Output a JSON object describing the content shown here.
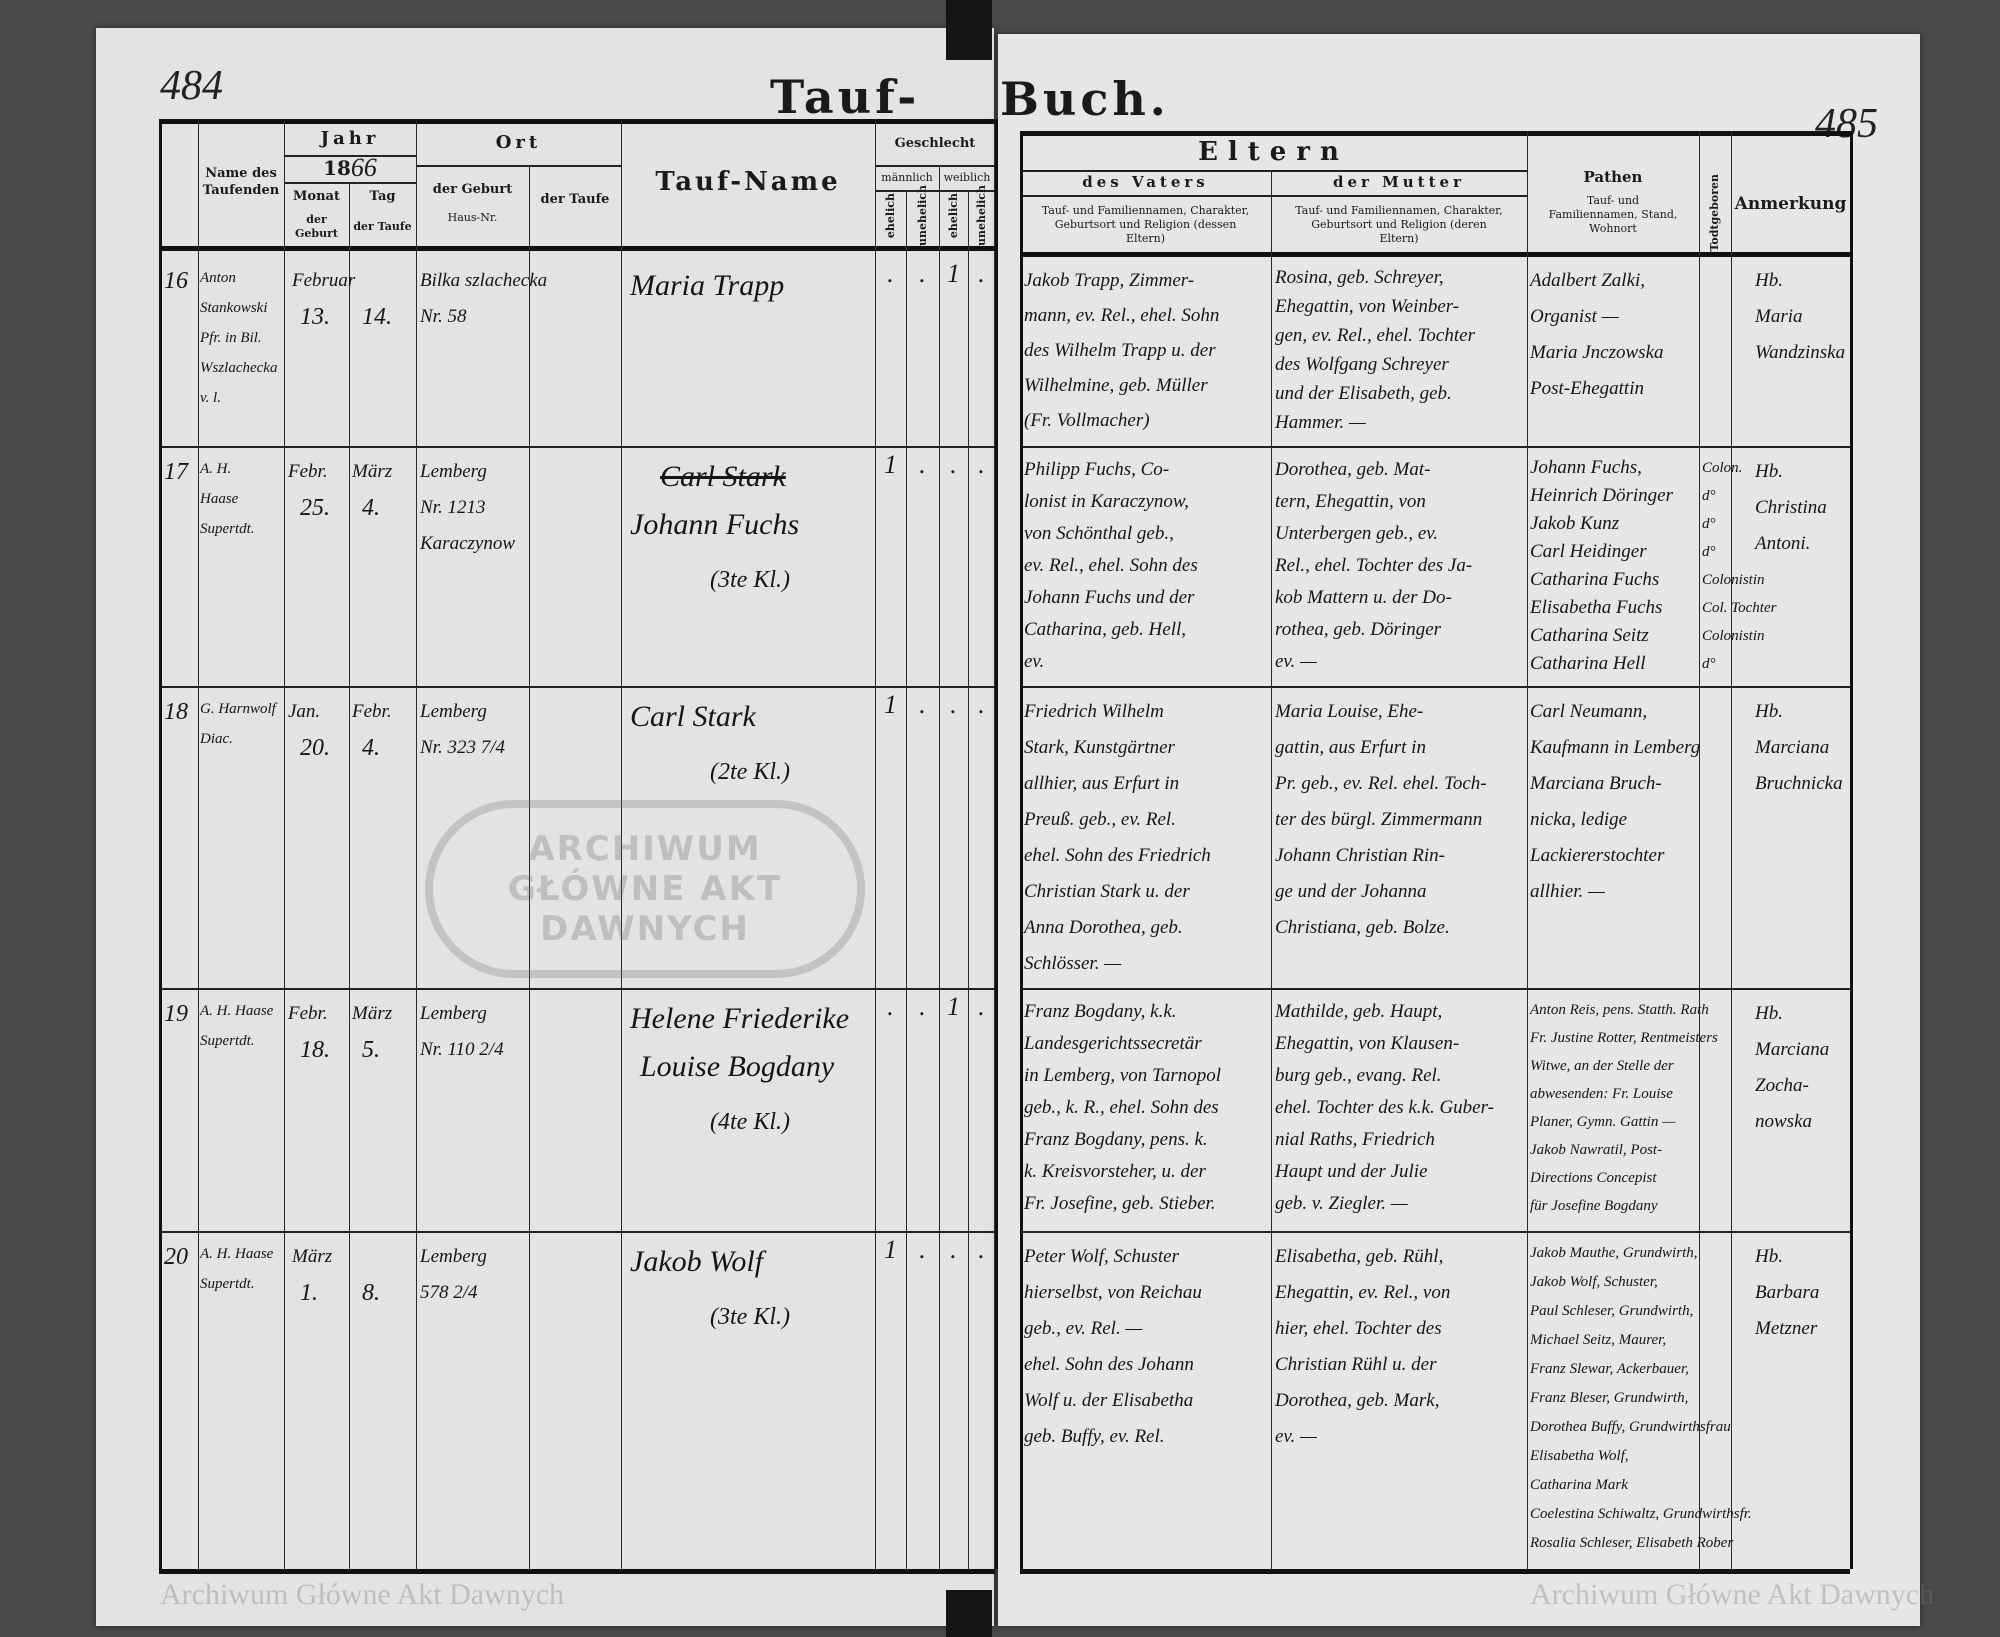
{
  "book_title": {
    "left": "Tauf-",
    "right": "Buch."
  },
  "page_numbers": {
    "left": "484",
    "right": "485"
  },
  "watermark": "Archiwum Główne Akt Dawnych",
  "stamp_text": "ARCHIWUM GŁÓWNE AKT DAWNYCH",
  "header": {
    "name_des_taufenden": "Name des Taufenden",
    "jahr": "Jahr",
    "year_printed": "18",
    "year_handwritten": "66",
    "monat": "Monat",
    "tag": "Tag",
    "der_geburt": "der Geburt",
    "der_taufe": "der Taufe",
    "ort": "Ort",
    "ort_geburt": "der Geburt",
    "haus_nr": "Haus-Nr.",
    "ort_taufe": "der Taufe",
    "tauf_name": "Tauf-Name",
    "geschlecht": "Geschlecht",
    "maennlich": "männlich",
    "weiblich": "weiblich",
    "ehelich": "ehelich",
    "unehelich": "unehelich",
    "eltern": "Eltern",
    "des_vaters": "des Vaters",
    "der_mutter": "der Mutter",
    "vater_desc": "Tauf- und Familiennamen, Charakter, Geburtsort und Religion (dessen Eltern)",
    "mutter_desc": "Tauf- und Familiennamen, Charakter, Geburtsort und Religion (deren Eltern)",
    "pathen": "Pathen",
    "pathen_desc": "Tauf- und Familiennamen, Stand, Wohnort",
    "todtgeboren": "Todtgeboren",
    "anmerkung": "Anmerkung"
  },
  "entries": [
    {
      "number": "16",
      "officiant": [
        "Anton",
        "Stankowski",
        "Pfr. in Bil.",
        "Wszlachecka",
        "v. l."
      ],
      "month": "Februar",
      "month_baptism": "",
      "birth_day": "13.",
      "baptism_day": "14.",
      "place": [
        "Bilka szlachecka",
        "Nr. 58"
      ],
      "name": [
        "Maria Trapp"
      ],
      "name_struck": "",
      "gender": [
        ".",
        ".",
        "1",
        "."
      ],
      "father": [
        "Jakob Trapp, Zimmer-",
        "mann, ev. Rel., ehel. Sohn",
        "des Wilhelm Trapp u. der",
        "Wilhelmine, geb. Müller",
        "(Fr. Vollmacher)"
      ],
      "mother": [
        "Rosina, geb. Schreyer,",
        "Ehegattin, von Weinber-",
        "gen, ev. Rel., ehel. Tochter",
        "des Wolfgang Schreyer",
        "und der Elisabeth, geb.",
        "Hammer. —"
      ],
      "godparents": [
        "Adalbert Zalki,",
        "Organist —",
        "Maria Jnczowska",
        "Post-Ehegattin"
      ],
      "status": [],
      "remark": [
        "Hb.",
        "Maria",
        "Wandzinska"
      ]
    },
    {
      "number": "17",
      "officiant": [
        "A. H.",
        "Haase",
        "Supertdt."
      ],
      "month": "Febr.",
      "month_baptism": "März",
      "birth_day": "25.",
      "baptism_day": "4.",
      "place": [
        "Lemberg",
        "Nr. 1213",
        "Karaczynow"
      ],
      "name": [
        "Johann Fuchs",
        "(3te Kl.)"
      ],
      "name_struck": "Carl Stark",
      "gender": [
        "1",
        ".",
        ".",
        "."
      ],
      "father": [
        "Philipp Fuchs, Co-",
        "lonist in Karaczynow,",
        "von Schönthal geb.,",
        "ev. Rel., ehel. Sohn des",
        "Johann Fuchs und der",
        "Catharina, geb. Hell,",
        "ev."
      ],
      "mother": [
        "Dorothea, geb. Mat-",
        "tern, Ehegattin, von",
        "Unterbergen geb., ev.",
        "Rel., ehel. Tochter des Ja-",
        "kob Mattern u. der Do-",
        "rothea, geb. Döringer",
        "ev. —"
      ],
      "godparents": [
        "Johann Fuchs,",
        "Heinrich Döringer",
        "Jakob Kunz",
        "Carl Heidinger",
        "Catharina Fuchs",
        "Elisabetha Fuchs",
        "Catharina Seitz",
        "Catharina Hell"
      ],
      "status": [
        "Colon.",
        "d°",
        "d°",
        "d°",
        "Colonistin",
        "Col. Tochter",
        "Colonistin",
        "d°"
      ],
      "remark": [
        "Hb.",
        "Christina",
        "Antoni."
      ]
    },
    {
      "number": "18",
      "officiant": [
        "G. Harnwolf",
        "Diac."
      ],
      "month": "Jan.",
      "month_baptism": "Febr.",
      "birth_day": "20.",
      "baptism_day": "4.",
      "place": [
        "Lemberg",
        "Nr. 323 7/4"
      ],
      "name": [
        "Carl Stark",
        "(2te Kl.)"
      ],
      "name_struck": "",
      "gender": [
        "1",
        ".",
        ".",
        "."
      ],
      "father": [
        "Friedrich Wilhelm",
        "Stark, Kunstgärtner",
        "allhier, aus Erfurt in",
        "Preuß. geb., ev. Rel.",
        "ehel. Sohn des Friedrich",
        "Christian Stark u. der",
        "Anna Dorothea, geb.",
        "Schlösser. —"
      ],
      "mother": [
        "Maria Louise, Ehe-",
        "gattin, aus Erfurt in",
        "Pr. geb., ev. Rel. ehel. Toch-",
        "ter des bürgl. Zimmermann",
        "Johann Christian Rin-",
        "ge und der Johanna",
        "Christiana, geb. Bolze."
      ],
      "godparents": [
        "Carl Neumann,",
        "Kaufmann in Lemberg",
        "Marciana Bruch-",
        "nicka, ledige",
        "Lackiererstochter",
        "allhier. —"
      ],
      "status": [],
      "remark": [
        "Hb.",
        "Marciana",
        "Bruchnicka"
      ]
    },
    {
      "number": "19",
      "officiant": [
        "A. H. Haase",
        "Supertdt."
      ],
      "month": "Febr.",
      "month_baptism": "März",
      "birth_day": "18.",
      "baptism_day": "5.",
      "place": [
        "Lemberg",
        "Nr. 110 2/4"
      ],
      "name": [
        "Helene Friederike",
        "Louise Bogdany",
        "(4te Kl.)"
      ],
      "name_struck": "",
      "gender": [
        ".",
        ".",
        "1",
        "."
      ],
      "father": [
        "Franz Bogdany, k.k.",
        "Landesgerichtssecretär",
        "in Lemberg, von Tarnopol",
        "geb., k. R., ehel. Sohn des",
        "Franz Bogdany, pens. k.",
        "k. Kreisvorsteher, u. der",
        "Fr. Josefine, geb. Stieber."
      ],
      "mother": [
        "Mathilde, geb. Haupt,",
        "Ehegattin, von Klausen-",
        "burg geb., evang. Rel.",
        "ehel. Tochter des k.k. Guber-",
        "nial Raths, Friedrich",
        "Haupt und der Julie",
        "geb. v. Ziegler. —"
      ],
      "godparents": [
        "Anton Reis, pens. Statth. Rath",
        "Fr. Justine Rotter, Rentmeisters",
        "Witwe, an der Stelle der",
        "abwesenden: Fr. Louise",
        "Planer, Gymn. Gattin —",
        "Jakob Nawratil, Post-",
        "Directions Concepist",
        "für Josefine Bogdany"
      ],
      "status": [],
      "remark": [
        "Hb.",
        "Marciana",
        "Zocha-",
        "nowska"
      ]
    },
    {
      "number": "20",
      "officiant": [
        "A. H. Haase",
        "Supertdt."
      ],
      "month": "März",
      "month_baptism": "",
      "birth_day": "1.",
      "baptism_day": "8.",
      "place": [
        "Lemberg",
        "578 2/4"
      ],
      "name": [
        "Jakob Wolf",
        "(3te Kl.)"
      ],
      "name_struck": "",
      "gender": [
        "1",
        ".",
        ".",
        "."
      ],
      "father": [
        "Peter Wolf, Schuster",
        "hierselbst, von Reichau",
        "geb., ev. Rel. —",
        "ehel. Sohn des Johann",
        "Wolf u. der Elisabetha",
        "geb. Buffy, ev. Rel."
      ],
      "mother": [
        "Elisabetha, geb. Rühl,",
        "Ehegattin, ev. Rel., von",
        "hier, ehel. Tochter des",
        "Christian Rühl u. der",
        "Dorothea, geb. Mark,",
        "ev. —"
      ],
      "godparents": [
        "Jakob Mauthe, Grundwirth,",
        "Jakob Wolf, Schuster,",
        "Paul Schleser, Grundwirth,",
        "Michael Seitz, Maurer,",
        "Franz Slewar, Ackerbauer,",
        "Franz Bleser, Grundwirth,",
        "Dorothea Buffy, Grundwirthsfrau",
        "Elisabetha Wolf,",
        "Catharina Mark",
        "Coelestina Schiwaltz, Grundwirthsfr.",
        "Rosalia Schleser, Elisabeth Rober"
      ],
      "status": [],
      "remark": [
        "Hb.",
        "Barbara",
        "Metzner"
      ]
    }
  ],
  "colors": {
    "paper": "#e3e3e3",
    "ink": "#151515",
    "background": "#4a4a4a"
  }
}
